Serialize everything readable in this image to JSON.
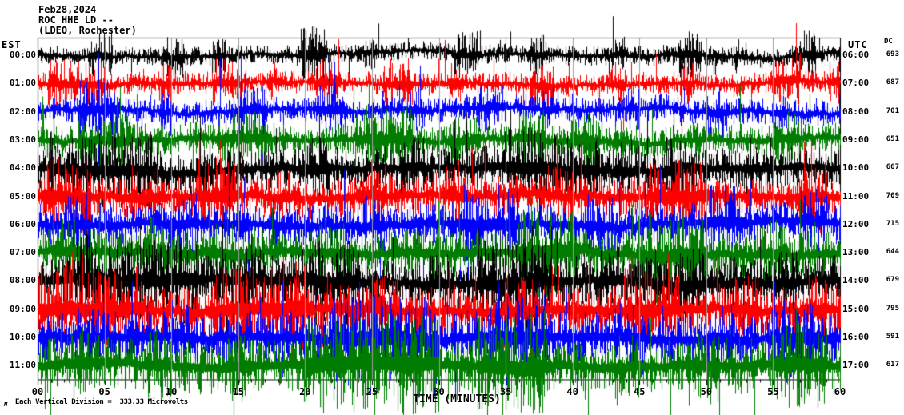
{
  "header": {
    "date": "Feb28,2024",
    "station_line": "ROC HHE LD --",
    "network_line": "(LDEO, Rochester)"
  },
  "axes": {
    "left_header": "EST",
    "right_header": "UTC",
    "dc_header": "DC",
    "xlabel": "TIME (MINUTES)",
    "x_tick_labels": [
      "00",
      "05",
      "10",
      "15",
      "20",
      "25",
      "30",
      "35",
      "40",
      "45",
      "50",
      "55",
      "60"
    ]
  },
  "footer": {
    "glyph": "M",
    "scale_note": "Each Vertical Division =  333.33 Microvolts"
  },
  "chart_data": {
    "type": "line",
    "subtype": "helicorder seismogram raster, 12 hourly traces stacked vertically",
    "title": "Feb28,2024 ROC HHE LD (LDEO, Rochester)",
    "xlabel": "TIME (MINUTES)",
    "x_range_minutes": [
      0,
      60
    ],
    "x_major_tick_minutes": 5,
    "x_minor_tick_minutes": 1,
    "grid": {
      "vertical_5min_lines": true,
      "color": "#9e9e9e"
    },
    "vertical_division_microvolts": "333.33",
    "frame_color": "#000000",
    "trace_colors_cycle": [
      "#000000",
      "#ff0000",
      "#0000ff",
      "#007d00"
    ],
    "rows": [
      {
        "est": "00:00",
        "utc": "06:00",
        "dc": "693",
        "color": "#000000",
        "amp": 6,
        "spike": 0.02,
        "bursts": [
          [
            3.8,
            5.6,
            2.6
          ],
          [
            9.3,
            11,
            2.3
          ],
          [
            13,
            14,
            1.8
          ],
          [
            19.8,
            21.6,
            3.2
          ],
          [
            24.3,
            25.3,
            2.0
          ],
          [
            31,
            33.2,
            2.6
          ],
          [
            36.8,
            38,
            2.1
          ],
          [
            42.8,
            44,
            1.9
          ],
          [
            47.8,
            49.6,
            2.3
          ],
          [
            52,
            53,
            1.8
          ],
          [
            56.4,
            58.2,
            2.5
          ]
        ],
        "steps": [
          [
            21,
            31,
            -3
          ]
        ]
      },
      {
        "est": "01:00",
        "utc": "07:00",
        "dc": "687",
        "color": "#ff0000",
        "amp": 7,
        "spike": 0.02,
        "bursts": [
          [
            0.8,
            5,
            2.2
          ],
          [
            9,
            10,
            1.8
          ],
          [
            13,
            15,
            2.2
          ],
          [
            17,
            18,
            1.8
          ],
          [
            20.8,
            22.6,
            2.4
          ],
          [
            25.8,
            28,
            2.2
          ],
          [
            30.8,
            32,
            2.0
          ],
          [
            36.8,
            38.6,
            2.2
          ],
          [
            42.8,
            44,
            2.0
          ],
          [
            48,
            49,
            1.9
          ],
          [
            54.8,
            57,
            2.4
          ],
          [
            59,
            60,
            2.0
          ]
        ],
        "steps": []
      },
      {
        "est": "02:00",
        "utc": "08:00",
        "dc": "701",
        "color": "#0000ff",
        "amp": 8,
        "spike": 0.02,
        "bursts": [
          [
            3,
            6,
            2.4
          ],
          [
            9,
            10,
            1.7
          ],
          [
            14.8,
            17,
            2.0
          ],
          [
            20.8,
            23,
            2.2
          ],
          [
            27.8,
            29,
            1.9
          ],
          [
            32.8,
            35,
            2.1
          ],
          [
            37.8,
            39,
            1.9
          ],
          [
            44,
            45,
            1.7
          ],
          [
            49.8,
            51.6,
            2.1
          ],
          [
            55,
            56,
            1.7
          ]
        ],
        "steps": []
      },
      {
        "est": "03:00",
        "utc": "09:00",
        "dc": "651",
        "color": "#007d00",
        "amp": 10,
        "spike": 0.02,
        "bursts": [
          [
            3,
            7,
            1.8
          ],
          [
            13.8,
            17,
            1.8
          ],
          [
            23.8,
            28,
            2.1
          ],
          [
            30.8,
            33,
            1.8
          ],
          [
            35.8,
            38,
            1.8
          ],
          [
            39.8,
            42,
            2.0
          ],
          [
            49,
            50,
            1.6
          ],
          [
            55,
            57,
            1.7
          ]
        ],
        "steps": []
      },
      {
        "est": "04:00",
        "utc": "10:00",
        "dc": "667",
        "color": "#000000",
        "amp": 13,
        "spike": 0.022,
        "bursts": [
          [
            0.8,
            9,
            1.8
          ],
          [
            12,
            13,
            1.5
          ],
          [
            19.8,
            22,
            1.7
          ],
          [
            27,
            29,
            1.5
          ],
          [
            34.8,
            42,
            1.9
          ],
          [
            43,
            45,
            1.7
          ],
          [
            46.8,
            49,
            1.8
          ],
          [
            53,
            55,
            1.5
          ]
        ],
        "steps": []
      },
      {
        "est": "05:00",
        "utc": "11:00",
        "dc": "709",
        "color": "#ff0000",
        "amp": 13,
        "spike": 0.022,
        "bursts": [
          [
            0.4,
            4,
            2.0
          ],
          [
            7,
            9,
            1.6
          ],
          [
            12,
            15,
            1.8
          ],
          [
            18,
            19,
            1.5
          ],
          [
            23.8,
            26,
            1.7
          ],
          [
            30,
            32,
            1.5
          ],
          [
            38,
            40,
            1.5
          ],
          [
            45.8,
            50,
            1.9
          ],
          [
            56.8,
            59,
            1.8
          ]
        ],
        "steps": []
      },
      {
        "est": "06:00",
        "utc": "12:00",
        "dc": "715",
        "color": "#0000ff",
        "amp": 13,
        "spike": 0.022,
        "bursts": [
          [
            2,
            4,
            1.5
          ],
          [
            9.8,
            12,
            1.6
          ],
          [
            17,
            19,
            1.5
          ],
          [
            24,
            26,
            1.5
          ],
          [
            31.8,
            36,
            1.9
          ],
          [
            41,
            43,
            1.5
          ],
          [
            49.8,
            53,
            1.9
          ],
          [
            57,
            59,
            1.6
          ]
        ],
        "steps": []
      },
      {
        "est": "07:00",
        "utc": "13:00",
        "dc": "644",
        "color": "#007d00",
        "amp": 15,
        "spike": 0.025,
        "bursts": [
          [
            1,
            3,
            1.4
          ],
          [
            8,
            10,
            1.4
          ],
          [
            12.8,
            15,
            1.6
          ],
          [
            21,
            23,
            1.4
          ],
          [
            28,
            30,
            1.4
          ],
          [
            35.8,
            40,
            1.9
          ],
          [
            44.8,
            50,
            2.0
          ],
          [
            54,
            56,
            1.5
          ]
        ],
        "steps": []
      },
      {
        "est": "08:00",
        "utc": "14:00",
        "dc": "679",
        "color": "#000000",
        "amp": 16,
        "spike": 0.025,
        "bursts": [
          [
            2.8,
            12,
            1.7
          ],
          [
            15,
            17,
            1.4
          ],
          [
            19.8,
            24,
            1.7
          ],
          [
            29,
            31,
            1.4
          ],
          [
            32.8,
            38,
            1.8
          ],
          [
            42,
            44,
            1.4
          ],
          [
            48,
            50,
            1.5
          ],
          [
            55,
            57,
            1.4
          ]
        ],
        "steps": []
      },
      {
        "est": "09:00",
        "utc": "15:00",
        "dc": "795",
        "color": "#ff0000",
        "amp": 16,
        "spike": 0.025,
        "bursts": [
          [
            0,
            8,
            1.8
          ],
          [
            12.8,
            20,
            1.7
          ],
          [
            25,
            27,
            1.4
          ],
          [
            34.8,
            37,
            1.5
          ],
          [
            43.8,
            48,
            1.7
          ],
          [
            52,
            54,
            1.4
          ],
          [
            57,
            59,
            1.5
          ]
        ],
        "steps": []
      },
      {
        "est": "10:00",
        "utc": "16:00",
        "dc": "591",
        "color": "#0000ff",
        "amp": 16,
        "spike": 0.025,
        "bursts": [
          [
            3,
            5,
            1.4
          ],
          [
            10,
            12,
            1.4
          ],
          [
            21.8,
            30,
            1.8
          ],
          [
            33.8,
            38,
            1.9
          ],
          [
            43,
            45,
            1.4
          ],
          [
            50,
            52,
            1.4
          ],
          [
            54.8,
            58,
            1.7
          ]
        ],
        "steps": []
      },
      {
        "est": "11:00",
        "utc": "17:00",
        "dc": "617",
        "color": "#007d00",
        "amp": 17,
        "spike": 0.025,
        "bursts": [
          [
            2,
            4,
            1.4
          ],
          [
            8,
            10,
            1.4
          ],
          [
            14,
            16,
            1.4
          ],
          [
            19.8,
            30,
            1.9
          ],
          [
            32.8,
            38,
            1.8
          ],
          [
            43,
            45,
            1.4
          ],
          [
            49,
            51,
            1.4
          ],
          [
            54.8,
            59,
            1.7
          ]
        ],
        "steps": []
      }
    ]
  }
}
